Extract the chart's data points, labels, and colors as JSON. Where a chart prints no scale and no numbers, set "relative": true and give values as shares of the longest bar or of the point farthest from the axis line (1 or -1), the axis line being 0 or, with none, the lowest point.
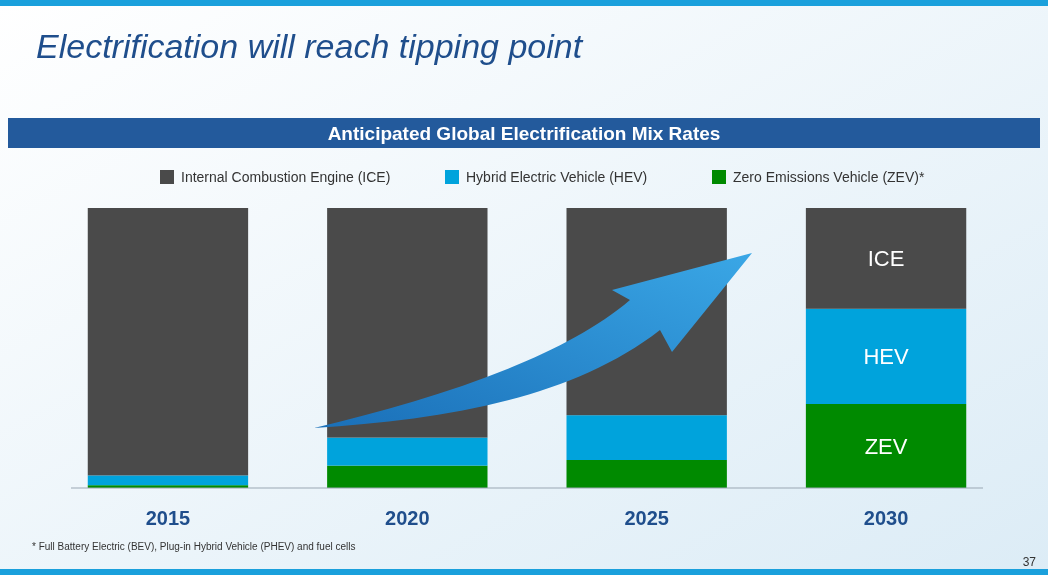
{
  "chart_data": {
    "type": "bar",
    "title": "Electrification will reach tipping point",
    "subtitle": "Anticipated Global Electrification Mix Rates",
    "categories": [
      "2015",
      "2020",
      "2025",
      "2030"
    ],
    "stacked": true,
    "relative": true,
    "legend": "top",
    "series": [
      {
        "name": "Zero Emissions Vehicle (ZEV)*",
        "color": "#008a00",
        "values": [
          0.01,
          0.08,
          0.1,
          0.3
        ]
      },
      {
        "name": "Hybrid Electric Vehicle (HEV)",
        "color": "#00a3dc",
        "values": [
          0.035,
          0.1,
          0.16,
          0.34
        ]
      },
      {
        "name": "Internal Combustion Engine (ICE)",
        "color": "#4a4a4a",
        "values": [
          0.955,
          0.82,
          0.74,
          0.36
        ]
      }
    ],
    "annotations": [
      "ICE",
      "HEV",
      "ZEV",
      "* Full Battery Electric (BEV), Plug-in Hybrid Vehicle (PHEV) and fuel cells",
      "37"
    ]
  }
}
